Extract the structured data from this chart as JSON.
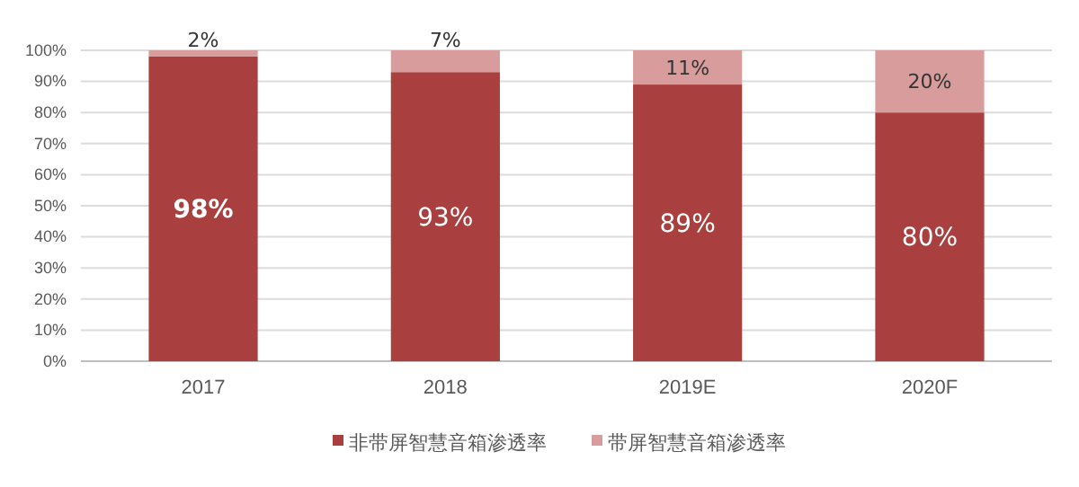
{
  "chart_data": {
    "type": "bar",
    "stacked": true,
    "categories": [
      "2017",
      "2018",
      "2019E",
      "2020F"
    ],
    "series": [
      {
        "name": "非带屏智慧音箱渗透率",
        "color": "#a93f3e",
        "values": [
          98,
          93,
          89,
          80
        ],
        "value_labels": [
          "98%",
          "93%",
          "89%",
          "80%"
        ]
      },
      {
        "name": "带屏智慧音箱渗透率",
        "color": "#d89c9c",
        "values": [
          2,
          7,
          11,
          20
        ],
        "value_labels": [
          "2%",
          "7%",
          "11%",
          "20%"
        ]
      }
    ],
    "ylim": [
      0,
      100
    ],
    "yticks": [
      {
        "value": 0,
        "label": "0%"
      },
      {
        "value": 10,
        "label": "10%"
      },
      {
        "value": 20,
        "label": "20%"
      },
      {
        "value": 30,
        "label": "30%"
      },
      {
        "value": 40,
        "label": "40%"
      },
      {
        "value": 50,
        "label": "50%"
      },
      {
        "value": 60,
        "label": "60%"
      },
      {
        "value": 70,
        "label": "70%"
      },
      {
        "value": 80,
        "label": "80%"
      },
      {
        "value": 90,
        "label": "90%"
      },
      {
        "value": 100,
        "label": "100%"
      }
    ],
    "grid": "y",
    "legend": "bottom"
  }
}
